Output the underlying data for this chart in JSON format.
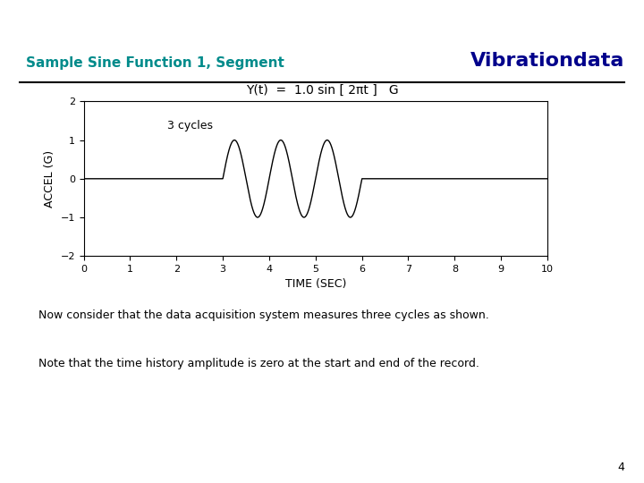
{
  "title_left": "Sample Sine Function 1, Segment",
  "title_right": "Vibrationdata",
  "title_left_color": "#008B8B",
  "title_right_color": "#00008B",
  "formula_text": "Y(t)  =  1.0 sin [ 2πt ]   G",
  "xlabel": "TIME (SEC)",
  "ylabel": "ACCEL (G)",
  "xlim": [
    0,
    10
  ],
  "ylim": [
    -2,
    2
  ],
  "xticks": [
    0,
    1,
    2,
    3,
    4,
    5,
    6,
    7,
    8,
    9,
    10
  ],
  "yticks": [
    -2,
    -1,
    0,
    1,
    2
  ],
  "annotation": "3 cycles",
  "t_start": 3.0,
  "t_end": 6.0,
  "amplitude": 1.0,
  "frequency": 1.0,
  "line_color": "#000000",
  "bg_color": "#ffffff",
  "body_text1": "Now consider that the data acquisition system measures three cycles as shown.",
  "body_text2": "Note that the time history amplitude is zero at the start and end of the record.",
  "page_number": "4",
  "title_fontsize": 11,
  "brand_fontsize": 16,
  "formula_fontsize": 10,
  "body_fontsize": 9,
  "page_fontsize": 9
}
